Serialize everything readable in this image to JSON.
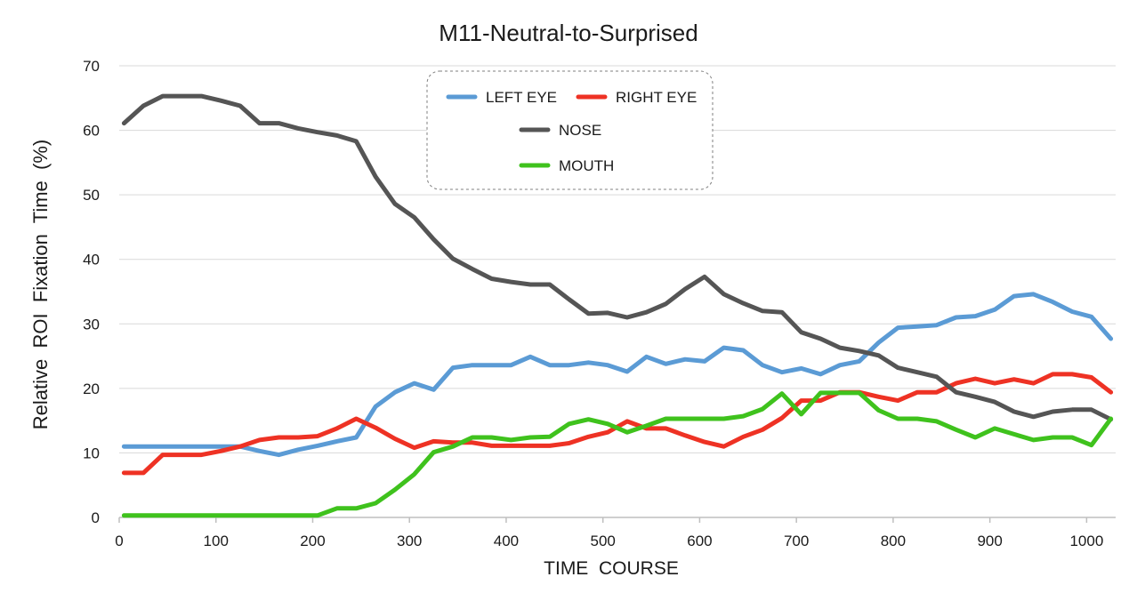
{
  "chart_data": {
    "type": "line",
    "title": "M11-Neutral-to-Surprised",
    "xlabel": "TIME  COURSE",
    "ylabel": "Relative  ROI  Fixation  Time  (%)",
    "xlim": [
      0,
      1030
    ],
    "ylim": [
      0,
      70
    ],
    "x_ticks": [
      0,
      100,
      200,
      300,
      400,
      500,
      600,
      700,
      800,
      900,
      1000
    ],
    "y_ticks": [
      0,
      10,
      20,
      30,
      40,
      50,
      60,
      70
    ],
    "grid": "horizontal",
    "legend_position": "top-center",
    "x": [
      5,
      25,
      45,
      65,
      85,
      105,
      125,
      145,
      165,
      185,
      205,
      225,
      245,
      265,
      285,
      305,
      325,
      345,
      365,
      385,
      405,
      425,
      445,
      465,
      485,
      505,
      525,
      545,
      565,
      585,
      605,
      625,
      645,
      665,
      685,
      705,
      725,
      745,
      765,
      785,
      805,
      825,
      845,
      865,
      885,
      905,
      925,
      945,
      965,
      985,
      1005,
      1025
    ],
    "series": [
      {
        "name": "LEFT EYE",
        "color": "#5b9bd5",
        "values": [
          11,
          11,
          11,
          11,
          11,
          11,
          11,
          10.3,
          9.7,
          10.5,
          11.1,
          11.8,
          12.4,
          17.2,
          19.4,
          20.8,
          19.8,
          23.2,
          23.6,
          23.6,
          23.6,
          24.9,
          23.6,
          23.6,
          24,
          23.6,
          22.6,
          24.9,
          23.8,
          24.5,
          24.2,
          26.3,
          25.9,
          23.6,
          22.5,
          23.1,
          22.2,
          23.6,
          24.2,
          27.1,
          29.4,
          29.6,
          29.8,
          31,
          31.2,
          32.2,
          34.3,
          34.6,
          33.4,
          31.9,
          31.1,
          27.7
        ]
      },
      {
        "name": "RIGHT EYE",
        "color": "#ee3224",
        "values": [
          6.9,
          6.9,
          9.7,
          9.7,
          9.7,
          10.3,
          11,
          12,
          12.4,
          12.4,
          12.6,
          13.8,
          15.3,
          13.9,
          12.2,
          10.8,
          11.8,
          11.6,
          11.6,
          11.1,
          11.1,
          11.1,
          11.1,
          11.5,
          12.5,
          13.2,
          14.9,
          13.8,
          13.8,
          12.7,
          11.7,
          11,
          12.5,
          13.6,
          15.4,
          18.1,
          18.1,
          19.4,
          19.4,
          18.7,
          18.1,
          19.4,
          19.4,
          20.8,
          21.5,
          20.8,
          21.4,
          20.8,
          22.2,
          22.2,
          21.7,
          19.4
        ]
      },
      {
        "name": "NOSE",
        "color": "#555555",
        "values": [
          61.1,
          63.8,
          65.3,
          65.3,
          65.3,
          64.6,
          63.8,
          61.1,
          61.1,
          60.3,
          59.7,
          59.2,
          58.3,
          52.8,
          48.6,
          46.5,
          43.1,
          40.1,
          38.5,
          37,
          36.5,
          36.1,
          36.1,
          33.8,
          31.6,
          31.7,
          31,
          31.8,
          33.1,
          35.4,
          37.3,
          34.6,
          33.2,
          32,
          31.8,
          28.7,
          27.7,
          26.3,
          25.8,
          25.1,
          23.2,
          22.5,
          21.8,
          19.4,
          18.7,
          17.9,
          16.4,
          15.6,
          16.4,
          16.7,
          16.7,
          15.2
        ]
      },
      {
        "name": "MOUTH",
        "color": "#3fc21d",
        "values": [
          0.3,
          0.3,
          0.3,
          0.3,
          0.3,
          0.3,
          0.3,
          0.3,
          0.3,
          0.3,
          0.3,
          1.4,
          1.4,
          2.2,
          4.3,
          6.7,
          10.1,
          11,
          12.4,
          12.4,
          12,
          12.4,
          12.5,
          14.5,
          15.2,
          14.5,
          13.2,
          14.2,
          15.3,
          15.3,
          15.3,
          15.3,
          15.7,
          16.8,
          19.2,
          16,
          19.3,
          19.3,
          19.3,
          16.6,
          15.3,
          15.3,
          14.9,
          13.6,
          12.4,
          13.8,
          12.9,
          12,
          12.4,
          12.4,
          11.2,
          15.3
        ]
      }
    ]
  }
}
